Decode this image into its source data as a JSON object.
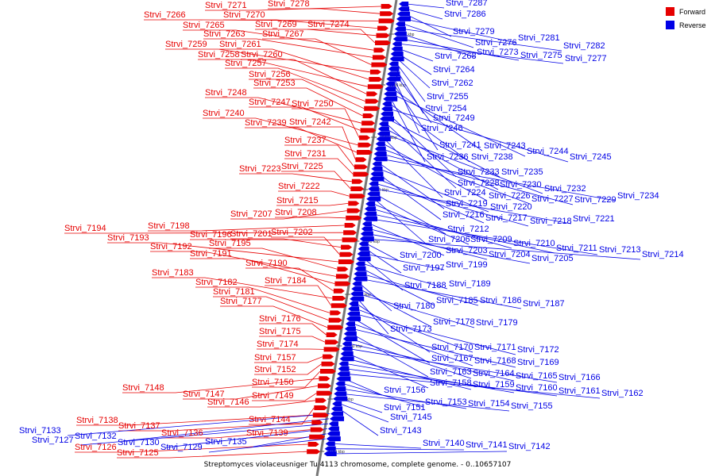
{
  "caption": "Streptomyces violaceusniger Tu 4113 chromosome, complete genome. - 0..10657107",
  "legend": [
    {
      "label": "Forward",
      "color": "#e60000"
    },
    {
      "label": "Reverse",
      "color": "#0000e6"
    }
  ],
  "colors": {
    "forward": "#e60000",
    "reverse": "#0000e6",
    "axis": "#777777"
  },
  "ticks": [
    "8120 kbp",
    "8300 kbp",
    "8280 kbp",
    "8260 kbp",
    "8240 kbp",
    "8220 kbp",
    "8200 kbp",
    "8180 kbp",
    "8160 kbp"
  ],
  "forward_labels": [
    "Strvi_7271",
    "Strvi_7278",
    "Strvi_7266",
    "Strvi_7270",
    "Strvi_7269",
    "Strvi_7274",
    "Strvi_7265",
    "Strvi_7263",
    "Strvi_7267",
    "Strvi_7259",
    "Strvi_7261",
    "Strvi_7258",
    "Strvi_7260",
    "Strvi_7257",
    "Strvi_7256",
    "Strvi_7253",
    "Strvi_7248",
    "Strvi_7247",
    "Strvi_7250",
    "Strvi_7240",
    "Strvi_7239",
    "Strvi_7242",
    "Strvi_7237",
    "Strvi_7231",
    "Strvi_7223",
    "Strvi_7225",
    "Strvi_7222",
    "Strvi_7215",
    "Strvi_7207",
    "Strvi_7208",
    "Strvi_7198",
    "Strvi_7194",
    "Strvi_7196",
    "Strvi_7201",
    "Strvi_7202",
    "Strvi_7193",
    "Strvi_7195",
    "Strvi_7192",
    "Strvi_7191",
    "Strvi_7190",
    "Strvi_7183",
    "Strvi_7184",
    "Strvi_7182",
    "Strvi_7181",
    "Strvi_7177",
    "Strvi_7176",
    "Strvi_7175",
    "Strvi_7174",
    "Strvi_7157",
    "Strvi_7152",
    "Strvi_7150",
    "Strvi_7148",
    "Strvi_7147",
    "Strvi_7149",
    "Strvi_7146",
    "Strvi_7144",
    "Strvi_7138",
    "Strvi_7137",
    "Strvi_7136",
    "Strvi_7139",
    "Strvi_7126",
    "Strvi_7125"
  ],
  "reverse_labels": [
    "Strvi_7287",
    "Strvi_7286",
    "Strvi_7279",
    "Strvi_7281",
    "Strvi_7276",
    "Strvi_7282",
    "Strvi_7273",
    "Strvi_7275",
    "Strvi_7277",
    "Strvi_7268",
    "Strvi_7264",
    "Strvi_7262",
    "Strvi_7255",
    "Strvi_7254",
    "Strvi_7249",
    "Strvi_7246",
    "Strvi_7241",
    "Strvi_7243",
    "Strvi_7244",
    "Strvi_7236",
    "Strvi_7238",
    "Strvi_7245",
    "Strvi_7233",
    "Strvi_7235",
    "Strvi_7228",
    "Strvi_7230",
    "Strvi_7232",
    "Strvi_7224",
    "Strvi_7226",
    "Strvi_7227",
    "Strvi_7229",
    "Strvi_7234",
    "Strvi_7219",
    "Strvi_7220",
    "Strvi_7216",
    "Strvi_7217",
    "Strvi_7218",
    "Strvi_7221",
    "Strvi_7212",
    "Strvi_7206",
    "Strvi_7209",
    "Strvi_7210",
    "Strvi_7211",
    "Strvi_7213",
    "Strvi_7203",
    "Strvi_7204",
    "Strvi_7205",
    "Strvi_7214",
    "Strvi_7200",
    "Strvi_7197",
    "Strvi_7199",
    "Strvi_7188",
    "Strvi_7189",
    "Strvi_7185",
    "Strvi_7186",
    "Strvi_7187",
    "Strvi_7180",
    "Strvi_7178",
    "Strvi_7179",
    "Strvi_7173",
    "Strvi_7170",
    "Strvi_7171",
    "Strvi_7172",
    "Strvi_7167",
    "Strvi_7168",
    "Strvi_7169",
    "Strvi_7163",
    "Strvi_7164",
    "Strvi_7165",
    "Strvi_7166",
    "Strvi_7158",
    "Strvi_7159",
    "Strvi_7160",
    "Strvi_7161",
    "Strvi_7162",
    "Strvi_7156",
    "Strvi_7153",
    "Strvi_7154",
    "Strvi_7155",
    "Strvi_7151",
    "Strvi_7145",
    "Strvi_7143",
    "Strvi_7133",
    "Strvi_7132",
    "Strvi_7127",
    "Strvi_7130",
    "Strvi_7135",
    "Strvi_7129",
    "Strvi_7140",
    "Strvi_7141",
    "Strvi_7142"
  ]
}
